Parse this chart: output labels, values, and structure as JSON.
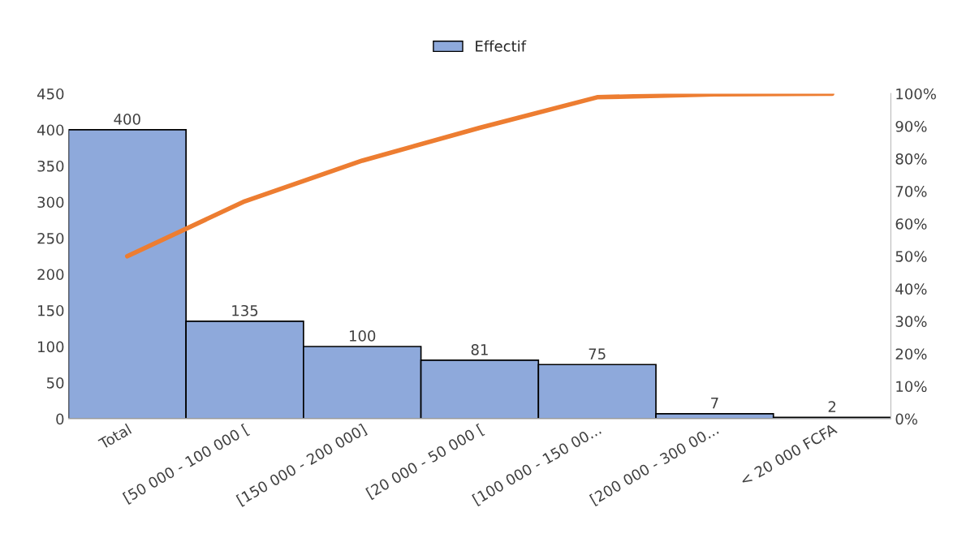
{
  "chart_data": {
    "type": "bar",
    "categories": [
      "Total",
      "[50 000 - 100 000 [",
      "[150 000 - 200 000]",
      "[20 000 - 50 000 [",
      "[100 000 - 150 00...",
      "[200 000 - 300 00...",
      "< 20 000 FCFA"
    ],
    "series": [
      {
        "name": "Effectif",
        "color": "#8ea9db",
        "values": [
          400,
          135,
          100,
          81,
          75,
          7,
          2
        ],
        "value_labels": [
          "400",
          "135",
          "100",
          "81",
          "75",
          "7",
          "2"
        ]
      },
      {
        "type": "line",
        "axis": "y2",
        "color": "#ed7d31",
        "values": [
          50,
          66.9,
          79.4,
          89.5,
          98.9,
          99.8,
          100
        ]
      }
    ],
    "ylim": [
      0,
      450
    ],
    "yticks": [
      0,
      50,
      100,
      150,
      200,
      250,
      300,
      350,
      400,
      450
    ],
    "y2lim": [
      0,
      100
    ],
    "y2ticks": [
      {
        "value": 0,
        "label": "0%"
      },
      {
        "value": 10,
        "label": "10%"
      },
      {
        "value": 20,
        "label": "20%"
      },
      {
        "value": 30,
        "label": "30%"
      },
      {
        "value": 40,
        "label": "40%"
      },
      {
        "value": 50,
        "label": "50%"
      },
      {
        "value": 60,
        "label": "60%"
      },
      {
        "value": 70,
        "label": "70%"
      },
      {
        "value": 80,
        "label": "80%"
      },
      {
        "value": 90,
        "label": "90%"
      },
      {
        "value": 100,
        "label": "100%"
      }
    ],
    "legend": "top",
    "grid": false,
    "marker": "none"
  }
}
